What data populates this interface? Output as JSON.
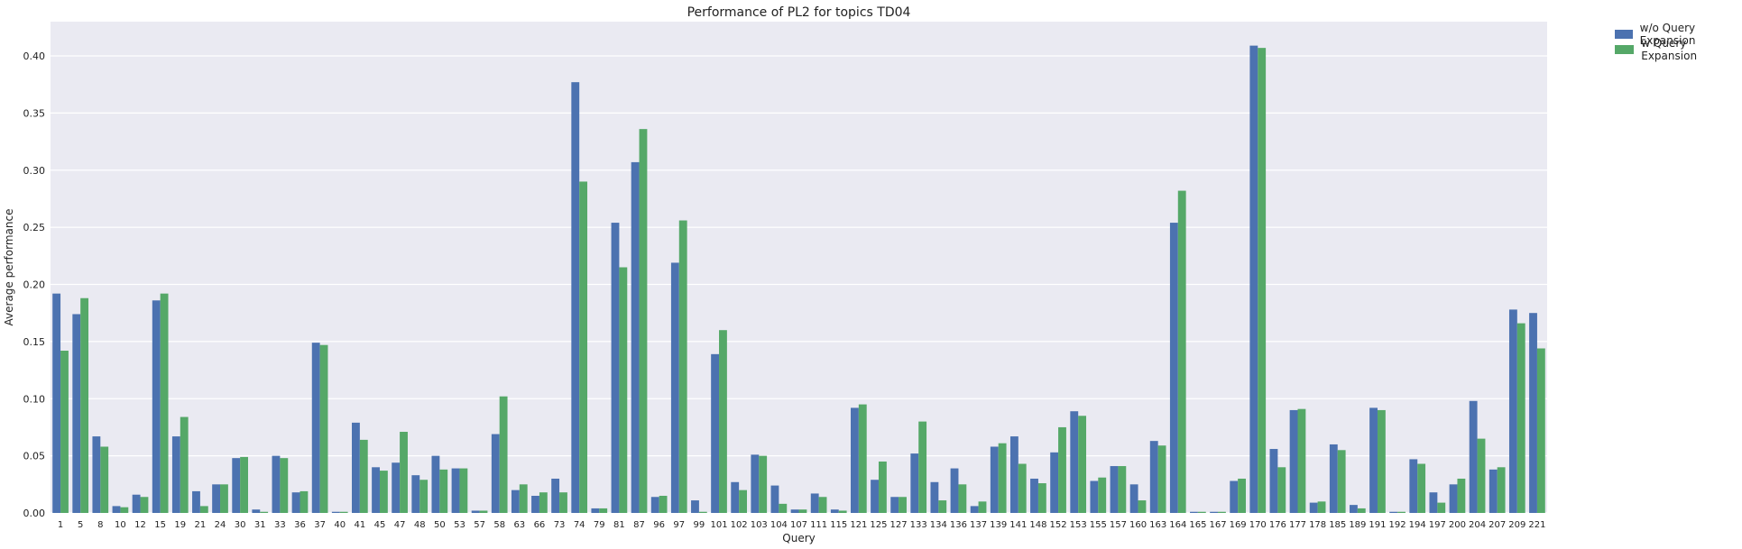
{
  "chart_data": {
    "type": "bar",
    "title": "Performance of PL2 for topics TD04",
    "xlabel": "Query",
    "ylabel": "Average performance",
    "ylim": [
      0,
      0.43
    ],
    "yticks": [
      "0.00",
      "0.05",
      "0.10",
      "0.15",
      "0.20",
      "0.25",
      "0.30",
      "0.35",
      "0.40"
    ],
    "grid": true,
    "legend_position": "outside-top-right",
    "categories": [
      "1",
      "5",
      "8",
      "10",
      "12",
      "15",
      "19",
      "21",
      "24",
      "30",
      "31",
      "33",
      "36",
      "37",
      "40",
      "41",
      "45",
      "47",
      "48",
      "50",
      "53",
      "57",
      "58",
      "63",
      "66",
      "73",
      "74",
      "79",
      "81",
      "87",
      "96",
      "97",
      "99",
      "101",
      "102",
      "103",
      "104",
      "107",
      "111",
      "115",
      "121",
      "125",
      "127",
      "133",
      "134",
      "136",
      "137",
      "139",
      "141",
      "148",
      "152",
      "153",
      "155",
      "157",
      "160",
      "163",
      "164",
      "165",
      "167",
      "169",
      "170",
      "176",
      "177",
      "178",
      "185",
      "189",
      "191",
      "192",
      "194",
      "197",
      "200",
      "204",
      "207",
      "209",
      "221"
    ],
    "series": [
      {
        "name": "w/o Query Expansion",
        "color": "#4c72b0",
        "values": [
          0.192,
          0.174,
          0.067,
          0.006,
          0.016,
          0.186,
          0.067,
          0.019,
          0.025,
          0.048,
          0.003,
          0.05,
          0.018,
          0.149,
          0.001,
          0.079,
          0.04,
          0.044,
          0.033,
          0.05,
          0.039,
          0.002,
          0.069,
          0.02,
          0.015,
          0.03,
          0.377,
          0.004,
          0.254,
          0.307,
          0.014,
          0.219,
          0.011,
          0.139,
          0.027,
          0.051,
          0.024,
          0.003,
          0.017,
          0.003,
          0.092,
          0.029,
          0.014,
          0.052,
          0.027,
          0.039,
          0.006,
          0.058,
          0.067,
          0.03,
          0.053,
          0.089,
          0.028,
          0.041,
          0.025,
          0.063,
          0.254,
          0.001,
          0.001,
          0.028,
          0.409,
          0.056,
          0.09,
          0.009,
          0.06,
          0.007,
          0.092,
          0.001,
          0.047,
          0.018,
          0.025,
          0.098,
          0.038,
          0.178,
          0.175
        ]
      },
      {
        "name": "w Query Expansion",
        "color": "#55a868",
        "values": [
          0.142,
          0.188,
          0.058,
          0.005,
          0.014,
          0.192,
          0.084,
          0.006,
          0.025,
          0.049,
          0.001,
          0.048,
          0.019,
          0.147,
          0.001,
          0.064,
          0.037,
          0.071,
          0.029,
          0.038,
          0.039,
          0.002,
          0.102,
          0.025,
          0.018,
          0.018,
          0.29,
          0.004,
          0.215,
          0.336,
          0.015,
          0.256,
          0.001,
          0.16,
          0.02,
          0.05,
          0.008,
          0.003,
          0.014,
          0.002,
          0.095,
          0.045,
          0.014,
          0.08,
          0.011,
          0.025,
          0.01,
          0.061,
          0.043,
          0.026,
          0.075,
          0.085,
          0.031,
          0.041,
          0.011,
          0.059,
          0.282,
          0.001,
          0.001,
          0.03,
          0.407,
          0.04,
          0.091,
          0.01,
          0.055,
          0.004,
          0.09,
          0.001,
          0.043,
          0.009,
          0.03,
          0.065,
          0.04,
          0.166,
          0.144
        ]
      }
    ]
  }
}
